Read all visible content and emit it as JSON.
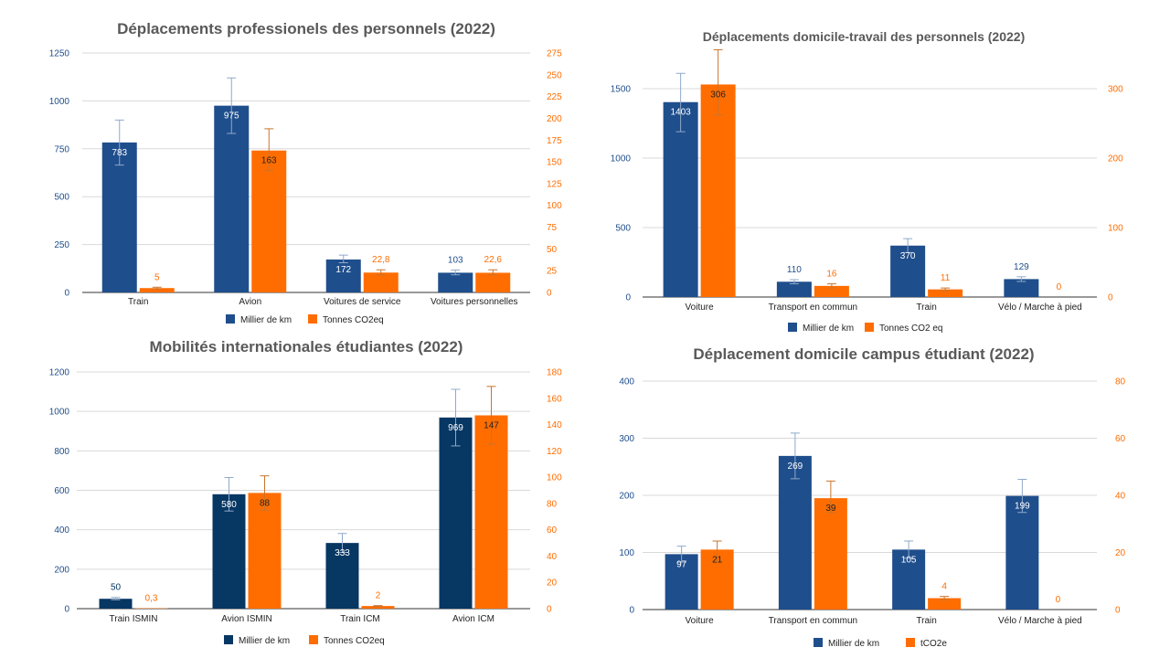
{
  "chart_data": [
    {
      "type": "bar",
      "title": "Déplacements professionels des personnels (2022)",
      "categories": [
        "Train",
        "Avion",
        "Voitures de service",
        "Voitures personnelles"
      ],
      "series": [
        {
          "name": "Millier de km",
          "axis": "left",
          "color": "#1f4e8c",
          "labels": [
            "783",
            "975",
            "172",
            "103"
          ],
          "values": [
            783,
            975,
            172,
            103
          ],
          "error": [
            [
              665,
              900
            ],
            [
              830,
              1120
            ],
            [
              155,
              195
            ],
            [
              92,
              117
            ]
          ]
        },
        {
          "name": "Tonnes CO2eq",
          "axis": "right",
          "color": "#ff6d01",
          "labels": [
            "5",
            "163",
            "22,8",
            "22,6"
          ],
          "values": [
            5,
            163,
            22.8,
            22.6
          ],
          "error": [
            [
              4,
              6
            ],
            [
              140,
              188
            ],
            [
              20,
              26
            ],
            [
              20,
              26
            ]
          ]
        }
      ],
      "left_ticks": [
        "0",
        "250",
        "500",
        "750",
        "1000",
        "1250"
      ],
      "right_ticks": [
        "0",
        "25",
        "50",
        "75",
        "100",
        "125",
        "150",
        "175",
        "200",
        "225",
        "250",
        "275"
      ],
      "ylim_left": [
        0,
        1250
      ],
      "ylim_right": [
        0,
        275
      ],
      "legend": [
        "Millier de km",
        "Tonnes CO2eq"
      ],
      "grid": true,
      "legend_position": "bottom"
    },
    {
      "type": "bar",
      "title": "Déplacements domicile-travail des personnels (2022)",
      "categories": [
        "Voiture",
        "Transport en commun",
        "Train",
        "Vélo / Marche à pied"
      ],
      "series": [
        {
          "name": "Millier de km",
          "axis": "left",
          "color": "#1f4e8c",
          "labels": [
            "1403",
            "110",
            "370",
            "129"
          ],
          "values": [
            1403,
            110,
            370,
            129
          ],
          "error": [
            [
              1190,
              1610
            ],
            [
              95,
              125
            ],
            [
              320,
              420
            ],
            [
              112,
              146
            ]
          ]
        },
        {
          "name": "Tonnes CO2 eq",
          "axis": "right",
          "color": "#ff6d01",
          "labels": [
            "306",
            "16",
            "11",
            "0"
          ],
          "values": [
            306,
            16,
            11,
            0
          ],
          "error": [
            [
              262,
              356
            ],
            [
              13,
              19
            ],
            [
              9,
              13
            ],
            null
          ]
        }
      ],
      "left_ticks": [
        "0",
        "500",
        "1000",
        "1500"
      ],
      "right_ticks": [
        "0",
        "100",
        "200",
        "300"
      ],
      "ylim_left": [
        0,
        1500
      ],
      "ylim_right": [
        0,
        300
      ],
      "legend": [
        "Millier de km",
        "Tonnes CO2 eq"
      ],
      "grid": true,
      "legend_position": "bottom"
    },
    {
      "type": "bar",
      "title": "Mobilités internationales étudiantes (2022)",
      "categories": [
        "Train ISMIN",
        "Avion ISMIN",
        "Train ICM",
        "Avion ICM"
      ],
      "series": [
        {
          "name": "Millier de km",
          "axis": "left",
          "color": "#073763",
          "labels": [
            "50",
            "580",
            "333",
            "969"
          ],
          "values": [
            50,
            580,
            333,
            969
          ],
          "error": [
            [
              45,
              57
            ],
            [
              495,
              665
            ],
            [
              285,
              381
            ],
            [
              825,
              1112
            ]
          ]
        },
        {
          "name": "Tonnes CO2eq",
          "axis": "right",
          "color": "#ff6d01",
          "labels": [
            "0,3",
            "88",
            "2",
            "147"
          ],
          "values": [
            0.3,
            88,
            2,
            147
          ],
          "error": [
            null,
            [
              75,
              101
            ],
            [
              1.7,
              2.3
            ],
            [
              125,
              169
            ]
          ]
        }
      ],
      "left_ticks": [
        "0",
        "200",
        "400",
        "600",
        "800",
        "1000",
        "1200"
      ],
      "right_ticks": [
        "0",
        "20",
        "40",
        "60",
        "80",
        "100",
        "120",
        "140",
        "160",
        "180"
      ],
      "ylim_left": [
        0,
        1200
      ],
      "ylim_right": [
        0,
        180
      ],
      "legend": [
        "Millier de km",
        "Tonnes CO2eq"
      ],
      "grid": true,
      "legend_position": "bottom"
    },
    {
      "type": "bar",
      "title": "Déplacement domicile campus étudiant (2022)",
      "categories": [
        "Voiture",
        "Transport en commun",
        "Train",
        "Vélo / Marche à pied"
      ],
      "series": [
        {
          "name": "Millier de km",
          "axis": "left",
          "color": "#1f4e8c",
          "labels": [
            "97",
            "269",
            "105",
            "199"
          ],
          "values": [
            97,
            269,
            105,
            199
          ],
          "error": [
            [
              83,
              111
            ],
            [
              229,
              309
            ],
            [
              90,
              120
            ],
            [
              170,
              228
            ]
          ]
        },
        {
          "name": "tCO2e",
          "axis": "right",
          "color": "#ff6d01",
          "labels": [
            "21",
            "39",
            "4",
            "0"
          ],
          "values": [
            21,
            39,
            4,
            0
          ],
          "error": [
            [
              17,
              24
            ],
            [
              34,
              45
            ],
            [
              3.4,
              4.6
            ],
            null
          ]
        }
      ],
      "left_ticks": [
        "0",
        "100",
        "200",
        "300",
        "400"
      ],
      "right_ticks": [
        "0",
        "20",
        "40",
        "60",
        "80"
      ],
      "ylim_left": [
        0,
        400
      ],
      "ylim_right": [
        0,
        80
      ],
      "legend": [
        "Millier de km",
        "tCO2e"
      ],
      "grid": true,
      "legend_position": "bottom"
    }
  ]
}
